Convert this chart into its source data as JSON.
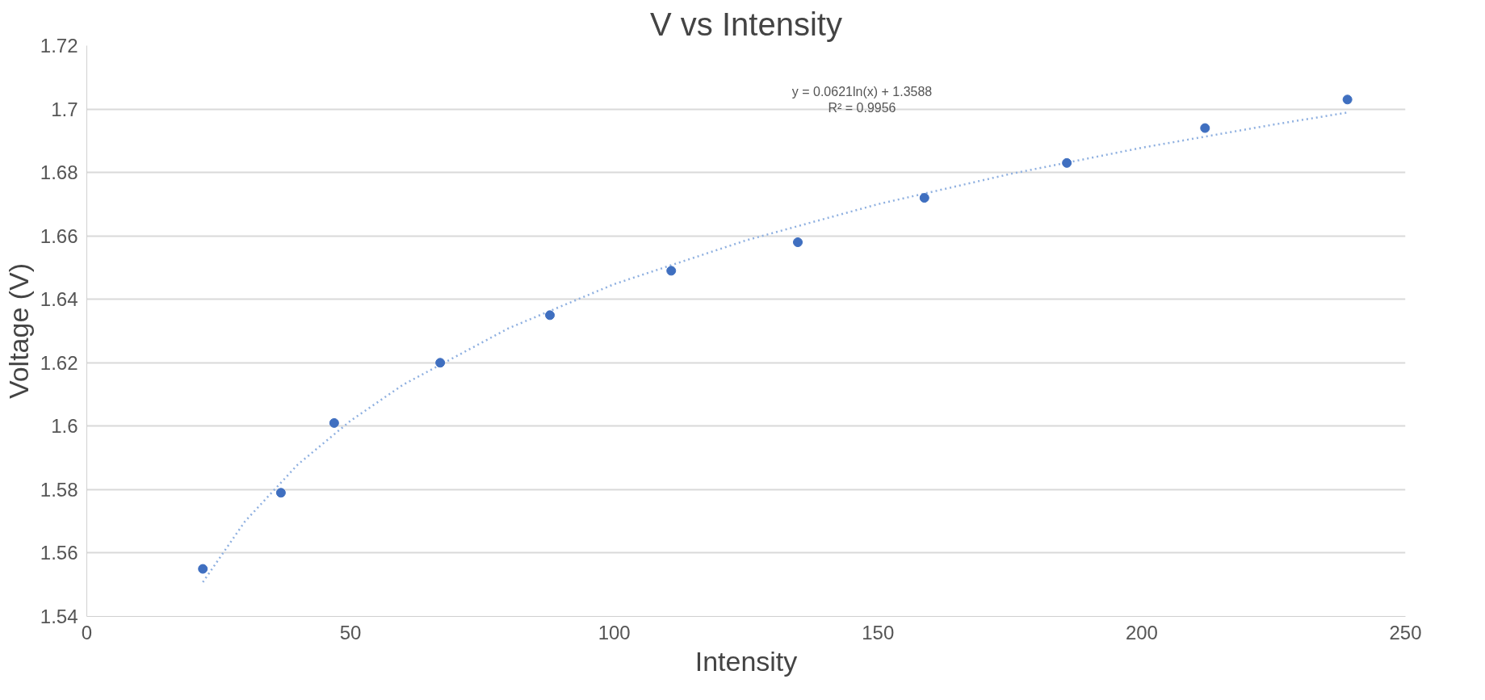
{
  "chart_data": {
    "type": "scatter",
    "title": "V vs Intensity",
    "xlabel": "Intensity",
    "ylabel": "Voltage (V)",
    "x": [
      22,
      36.8,
      46.9,
      67,
      87.8,
      110.8,
      134.8,
      158.8,
      185.8,
      212,
      239
    ],
    "series": [
      {
        "color": "#3f6fc0",
        "marker": "circle",
        "values": [
          1.555,
          1.579,
          1.601,
          1.62,
          1.635,
          1.649,
          1.658,
          1.672,
          1.683,
          1.694,
          1.703
        ]
      },
      {
        "type": "line",
        "color": "#8fb0e0",
        "line_style": "dotted",
        "marker": "none",
        "x": [
          22,
          30,
          40,
          50,
          60,
          80,
          100,
          125,
          150,
          175,
          200,
          225,
          239
        ],
        "values": [
          1.5508,
          1.57,
          1.5879,
          1.6017,
          1.6131,
          1.6309,
          1.6448,
          1.6586,
          1.67,
          1.6795,
          1.6878,
          1.6951,
          1.6989
        ]
      }
    ],
    "annotations": [
      "y = 0.0621ln(x) + 1.3588\nR² = 0.9956"
    ],
    "xlim": [
      0,
      250
    ],
    "xticks": [
      0,
      50,
      100,
      150,
      200,
      250
    ],
    "ylim": [
      1.54,
      1.72
    ],
    "yticks": [
      1.54,
      1.56,
      1.58,
      1.6,
      1.62,
      1.64,
      1.66,
      1.68,
      1.7,
      1.72
    ],
    "grid": "y"
  }
}
